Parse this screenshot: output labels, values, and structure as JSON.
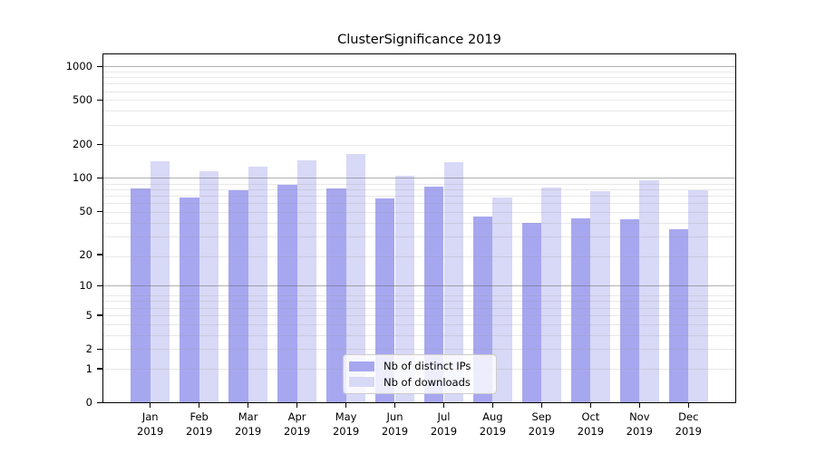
{
  "chart_data": {
    "type": "bar",
    "title": "ClusterSignificance 2019",
    "categories": [
      "Jan",
      "Feb",
      "Mar",
      "Apr",
      "May",
      "Jun",
      "Jul",
      "Aug",
      "Sep",
      "Oct",
      "Nov",
      "Dec"
    ],
    "category_year": "2019",
    "series": [
      {
        "name": "Nb of distinct IPs",
        "color": "#a7a7f0",
        "values": [
          81,
          66,
          78,
          87,
          80,
          65,
          84,
          45,
          39,
          43,
          42,
          34
        ]
      },
      {
        "name": "Nb of downloads",
        "color": "#d8d8f7",
        "values": [
          140,
          115,
          126,
          143,
          164,
          105,
          139,
          67,
          82,
          76,
          95,
          77
        ]
      }
    ],
    "y_ticks": [
      0,
      1,
      2,
      5,
      10,
      20,
      50,
      100,
      200,
      500,
      1000
    ],
    "y_scale": "log10(1+y)",
    "ylim": [
      0,
      1280
    ],
    "xlabel": "",
    "ylabel": "",
    "grid": "both major and minor horizontal gridlines, drawn over bars",
    "legend_position": "inside lower-center",
    "colors": {
      "major_grid": "#b0b0b0",
      "minor_grid": "#e8e8e8",
      "axis": "#000000",
      "background": "#ffffff"
    }
  }
}
